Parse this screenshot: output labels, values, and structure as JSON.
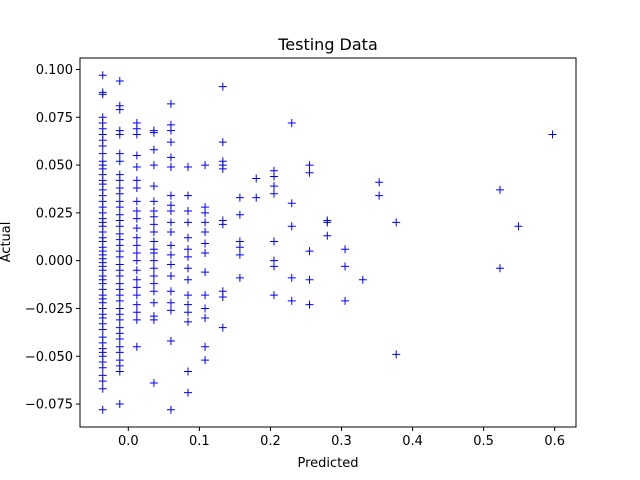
{
  "chart_data": {
    "type": "scatter",
    "title": "Testing Data",
    "xlabel": "Predicted",
    "ylabel": "Actual",
    "xlim": [
      -0.068,
      0.63
    ],
    "ylim": [
      -0.087,
      0.106
    ],
    "x_ticks": [
      {
        "value": 0.0,
        "label": "0.0"
      },
      {
        "value": 0.1,
        "label": "0.1"
      },
      {
        "value": 0.2,
        "label": "0.2"
      },
      {
        "value": 0.3,
        "label": "0.3"
      },
      {
        "value": 0.4,
        "label": "0.4"
      },
      {
        "value": 0.5,
        "label": "0.5"
      },
      {
        "value": 0.6,
        "label": "0.6"
      }
    ],
    "y_ticks": [
      {
        "value": -0.075,
        "label": "−0.075"
      },
      {
        "value": -0.05,
        "label": "−0.050"
      },
      {
        "value": -0.025,
        "label": "−0.025"
      },
      {
        "value": 0.0,
        "label": "0.000"
      },
      {
        "value": 0.025,
        "label": "0.025"
      },
      {
        "value": 0.05,
        "label": "0.050"
      },
      {
        "value": 0.075,
        "label": "0.075"
      },
      {
        "value": 0.1,
        "label": "0.100"
      }
    ],
    "grid": false,
    "marker": "+",
    "color": "#0000ff",
    "columns": [
      {
        "x": -0.036,
        "y": [
          0.097,
          0.088,
          0.087,
          0.075,
          0.072,
          0.069,
          0.066,
          0.063,
          0.06,
          0.056,
          0.052,
          0.05,
          0.048,
          0.045,
          0.042,
          0.04,
          0.037,
          0.034,
          0.031,
          0.028,
          0.025,
          0.022,
          0.02,
          0.018,
          0.015,
          0.012,
          0.01,
          0.007,
          0.005,
          0.003,
          0.001,
          -0.001,
          -0.003,
          -0.005,
          -0.008,
          -0.01,
          -0.012,
          -0.015,
          -0.018,
          -0.02,
          -0.022,
          -0.025,
          -0.028,
          -0.03,
          -0.033,
          -0.036,
          -0.04,
          -0.043,
          -0.046,
          -0.048,
          -0.05,
          -0.053,
          -0.056,
          -0.06,
          -0.063,
          -0.067,
          -0.078
        ]
      },
      {
        "x": -0.012,
        "y": [
          0.094,
          0.081,
          0.079,
          0.068,
          0.066,
          0.056,
          0.052,
          0.045,
          0.042,
          0.038,
          0.035,
          0.031,
          0.028,
          0.024,
          0.021,
          0.018,
          0.014,
          0.011,
          0.008,
          0.005,
          0.002,
          -0.002,
          -0.005,
          -0.008,
          -0.012,
          -0.015,
          -0.018,
          -0.021,
          -0.025,
          -0.028,
          -0.031,
          -0.035,
          -0.038,
          -0.041,
          -0.045,
          -0.048,
          -0.052,
          -0.055,
          -0.058,
          -0.075
        ]
      },
      {
        "x": 0.012,
        "y": [
          0.072,
          0.069,
          0.066,
          0.055,
          0.049,
          0.042,
          0.038,
          0.031,
          0.026,
          0.022,
          0.017,
          0.012,
          0.008,
          0.004,
          0.0,
          -0.005,
          -0.01,
          -0.014,
          -0.018,
          -0.023,
          -0.027,
          -0.031,
          -0.045
        ]
      },
      {
        "x": 0.036,
        "y": [
          0.068,
          0.067,
          0.058,
          0.05,
          0.039,
          0.031,
          0.026,
          0.023,
          0.019,
          0.015,
          0.01,
          0.006,
          0.004,
          0.0,
          -0.004,
          -0.008,
          -0.012,
          -0.016,
          -0.022,
          -0.029,
          -0.031,
          -0.064
        ]
      },
      {
        "x": 0.06,
        "y": [
          0.082,
          0.071,
          0.068,
          0.062,
          0.054,
          0.049,
          0.034,
          0.029,
          0.026,
          0.02,
          0.015,
          0.008,
          0.003,
          -0.002,
          -0.008,
          -0.016,
          -0.022,
          -0.026,
          -0.042,
          -0.078
        ]
      },
      {
        "x": 0.084,
        "y": [
          0.049,
          0.034,
          0.026,
          0.02,
          0.012,
          0.006,
          0.002,
          -0.004,
          -0.01,
          -0.018,
          -0.023,
          -0.027,
          -0.032,
          -0.058,
          -0.069
        ]
      },
      {
        "x": 0.108,
        "y": [
          0.05,
          0.028,
          0.025,
          0.02,
          0.015,
          0.009,
          0.004,
          -0.006,
          -0.018,
          -0.025,
          -0.03,
          -0.045,
          -0.052
        ]
      },
      {
        "x": 0.133,
        "y": [
          0.091,
          0.062,
          0.052,
          0.05,
          0.048,
          0.021,
          0.019,
          -0.016,
          -0.019,
          -0.035
        ]
      },
      {
        "x": 0.157,
        "y": [
          0.033,
          0.024,
          0.01,
          0.007,
          0.003,
          -0.009
        ]
      }
    ],
    "points": [
      {
        "x": 0.18,
        "y": 0.043
      },
      {
        "x": 0.18,
        "y": 0.033
      },
      {
        "x": 0.205,
        "y": 0.047
      },
      {
        "x": 0.205,
        "y": 0.044
      },
      {
        "x": 0.205,
        "y": 0.039
      },
      {
        "x": 0.205,
        "y": 0.035
      },
      {
        "x": 0.205,
        "y": 0.01
      },
      {
        "x": 0.205,
        "y": 0.0
      },
      {
        "x": 0.205,
        "y": -0.003
      },
      {
        "x": 0.205,
        "y": -0.018
      },
      {
        "x": 0.23,
        "y": 0.072
      },
      {
        "x": 0.23,
        "y": 0.03
      },
      {
        "x": 0.23,
        "y": 0.018
      },
      {
        "x": 0.23,
        "y": -0.009
      },
      {
        "x": 0.23,
        "y": -0.021
      },
      {
        "x": 0.255,
        "y": 0.05
      },
      {
        "x": 0.255,
        "y": 0.046
      },
      {
        "x": 0.255,
        "y": 0.005
      },
      {
        "x": 0.255,
        "y": -0.01
      },
      {
        "x": 0.255,
        "y": -0.023
      },
      {
        "x": 0.28,
        "y": 0.021
      },
      {
        "x": 0.28,
        "y": 0.02
      },
      {
        "x": 0.28,
        "y": 0.013
      },
      {
        "x": 0.305,
        "y": 0.006
      },
      {
        "x": 0.305,
        "y": -0.003
      },
      {
        "x": 0.305,
        "y": -0.021
      },
      {
        "x": 0.33,
        "y": -0.01
      },
      {
        "x": 0.353,
        "y": 0.041
      },
      {
        "x": 0.353,
        "y": 0.034
      },
      {
        "x": 0.377,
        "y": 0.02
      },
      {
        "x": 0.377,
        "y": -0.049
      },
      {
        "x": 0.523,
        "y": 0.037
      },
      {
        "x": 0.523,
        "y": -0.004
      },
      {
        "x": 0.549,
        "y": 0.018
      },
      {
        "x": 0.597,
        "y": 0.066
      }
    ]
  }
}
